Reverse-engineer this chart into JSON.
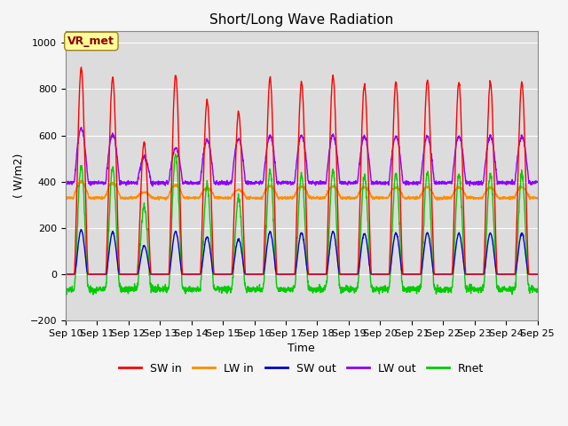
{
  "title": "Short/Long Wave Radiation",
  "xlabel": "Time",
  "ylabel": "( W/m2)",
  "ylim": [
    -200,
    1050
  ],
  "x_tick_labels": [
    "Sep 10",
    "Sep 11",
    "Sep 12",
    "Sep 13",
    "Sep 14",
    "Sep 15",
    "Sep 16",
    "Sep 17",
    "Sep 18",
    "Sep 19",
    "Sep 20",
    "Sep 21",
    "Sep 22",
    "Sep 23",
    "Sep 24",
    "Sep 25"
  ],
  "legend_labels": [
    "SW in",
    "LW in",
    "SW out",
    "LW out",
    "Rnet"
  ],
  "colors": {
    "SW_in": "#ff0000",
    "LW_in": "#ff8c00",
    "SW_out": "#0000cd",
    "LW_out": "#8b00ff",
    "Rnet": "#00cc00"
  },
  "annotation_text": "VR_met",
  "annotation_color": "#8b0000",
  "annotation_bg": "#ffff99",
  "background_color": "#dcdcdc",
  "grid_color": "#ffffff",
  "title_fontsize": 11,
  "axis_fontsize": 9,
  "tick_fontsize": 8,
  "legend_fontsize": 9,
  "SW_in_peaks": [
    890,
    850,
    570,
    860,
    750,
    700,
    845,
    830,
    855,
    820,
    830,
    840,
    825,
    830,
    825
  ],
  "LW_out_night": 395,
  "LW_in_night": 330,
  "Rnet_night": -60
}
